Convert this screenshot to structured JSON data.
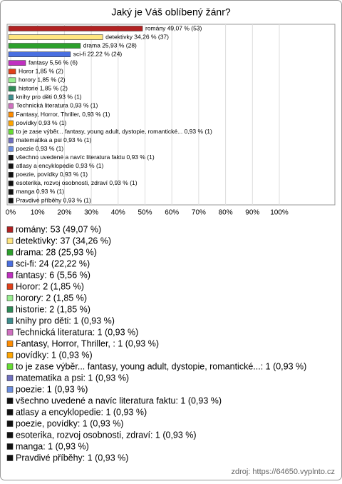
{
  "chart_data": {
    "type": "bar",
    "orientation": "horizontal",
    "title": "Jaký je Váš oblíbený žánr?",
    "values": [
      49.07,
      34.26,
      25.93,
      22.22,
      5.56,
      1.85,
      1.85,
      1.85,
      0.93,
      0.93,
      0.93,
      0.93,
      0.93,
      0.93,
      0.93,
      0.93,
      0.93,
      0.93,
      0.93,
      0.93,
      0.93
    ],
    "value_labels": [
      "romány 49,07 % (53)",
      "detektivky 34,26 % (37)",
      "drama 25,93 % (28)",
      "sci-fi 22,22 % (24)",
      "fantasy 5,56 % (6)",
      "Horor 1,85 % (2)",
      "horory 1,85 % (2)",
      "historie 1,85 % (2)",
      "knihy pro děti 0,93 % (1)",
      "Technická literatura 0,93 % (1)",
      "Fantasy, Horror, Thriller, 0,93 % (1)",
      "povídky 0,93 % (1)",
      "to je zase výběr... fantasy, young adult, dystopie, romantické... 0,93 % (1)",
      "matematika a psi 0,93 % (1)",
      "poezie 0,93 % (1)",
      "všechno uvedené a navíc literatura faktu 0,93 % (1)",
      "atlasy a encyklopedie 0,93 % (1)",
      "poezie, povídky 0,93 % (1)",
      "esoterika, rozvoj osobnosti, zdraví 0,93 % (1)",
      "manga 0,93 % (1)",
      "Pravdivé příběhy 0,93 % (1)"
    ],
    "legend_labels": [
      "romány: 53 (49,07 %)",
      "detektivky: 37 (34,26 %)",
      "drama: 28 (25,93 %)",
      "sci-fi: 24 (22,22 %)",
      "fantasy: 6 (5,56 %)",
      "Horor: 2 (1,85 %)",
      "horory: 2 (1,85 %)",
      "historie: 2 (1,85 %)",
      "knihy pro děti: 1 (0,93 %)",
      "Technická literatura: 1 (0,93 %)",
      "Fantasy, Horror, Thriller, : 1 (0,93 %)",
      "povídky: 1 (0,93 %)",
      "to je zase výběr... fantasy, young adult, dystopie, romantické...: 1 (0,93 %)",
      "matematika a psi: 1 (0,93 %)",
      "poezie: 1 (0,93 %)",
      "všechno uvedené a navíc literatura faktu: 1 (0,93 %)",
      "atlasy a encyklopedie: 1 (0,93 %)",
      "poezie, povídky: 1 (0,93 %)",
      "esoterika, rozvoj osobnosti, zdraví: 1 (0,93 %)",
      "manga: 1 (0,93 %)",
      "Pravdivé příběhy: 1 (0,93 %)"
    ],
    "colors": [
      "#b22222",
      "#ffe680",
      "#2ca02c",
      "#4a6fe0",
      "#c030c0",
      "#e0401a",
      "#98ee90",
      "#2e8b57",
      "#3f8f8f",
      "#d070c0",
      "#ff8c00",
      "#ffa500",
      "#66dd33",
      "#7070c0",
      "#6b8ee0",
      "#111111",
      "#111111",
      "#111111",
      "#111111",
      "#111111",
      "#111111"
    ],
    "xlim": [
      0,
      100
    ],
    "xticks": [
      {
        "value": 0,
        "label": "0%"
      },
      {
        "value": 10,
        "label": "10%"
      },
      {
        "value": 20,
        "label": "20%"
      },
      {
        "value": 30,
        "label": "30%"
      },
      {
        "value": 40,
        "label": "40%"
      },
      {
        "value": 50,
        "label": "50%"
      },
      {
        "value": 60,
        "label": "60%"
      },
      {
        "value": 70,
        "label": "70%"
      },
      {
        "value": 80,
        "label": "80%"
      },
      {
        "value": 90,
        "label": "90%"
      },
      {
        "value": 100,
        "label": "100%"
      }
    ],
    "grid": true,
    "source": "zdroj: https://64650.vyplnto.cz"
  }
}
